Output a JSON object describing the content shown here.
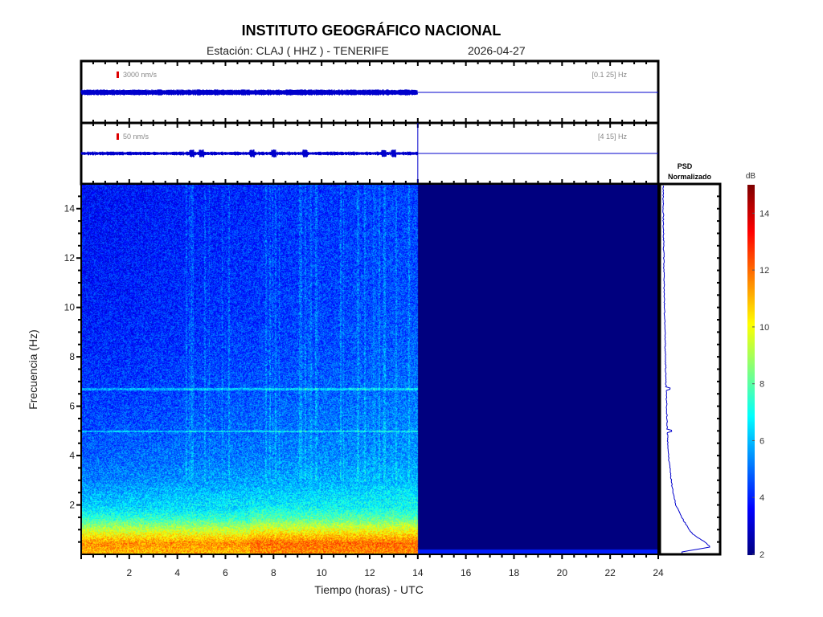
{
  "header": {
    "title": "INSTITUTO GEOGRÁFICO NACIONAL",
    "station_label": "Estación:  CLAJ ( HHZ ) - TENERIFE",
    "date": "2026-04-27"
  },
  "colors": {
    "trace": "#0000cc",
    "scale_bar": "#dd0000",
    "empty": "#00007f"
  },
  "chart_data": [
    {
      "type": "line",
      "name": "trace-broadband",
      "scale_label": "3000 nm/s",
      "band_label": "[0.1 25] Hz",
      "x_range": [
        0,
        24
      ],
      "data_end_hour": 14,
      "relative_amplitude": 0.08
    },
    {
      "type": "line",
      "name": "trace-filtered",
      "scale_label": "50 nm/s",
      "band_label": "[4 15] Hz",
      "x_range": [
        0,
        24
      ],
      "data_end_hour": 14,
      "relative_amplitude": 0.06,
      "bursts_hours": [
        4.6,
        5.0,
        7.1,
        8.0,
        9.3,
        12.6,
        13.0
      ]
    },
    {
      "type": "heatmap",
      "name": "spectrogram",
      "xlabel": "Tiempo (horas) - UTC",
      "ylabel": "Frecuencia  (Hz)",
      "xlim": [
        0,
        24
      ],
      "ylim": [
        0,
        15
      ],
      "xticks": [
        2,
        4,
        6,
        8,
        10,
        12,
        14,
        16,
        18,
        20,
        22,
        24
      ],
      "yticks": [
        2,
        4,
        6,
        8,
        10,
        12,
        14
      ],
      "data_end_hour": 14,
      "harmonic_lines_hz": [
        5.0,
        6.7
      ],
      "level_profile_db": {
        "freq_hz": [
          0.1,
          0.5,
          1,
          1.5,
          2,
          3,
          4,
          6,
          8,
          10,
          15
        ],
        "db": [
          11,
          11.5,
          9.5,
          7.5,
          6.3,
          5.3,
          4.8,
          4.4,
          4.1,
          3.9,
          3.7
        ]
      }
    },
    {
      "type": "line",
      "name": "psd",
      "title": "PSD\nNormalizado",
      "title_line1": "PSD",
      "title_line2": "Normalizado",
      "freq_hz": [
        0.1,
        0.3,
        0.5,
        0.8,
        1,
        1.5,
        2,
        2.5,
        3,
        4,
        5,
        6,
        6.7,
        8,
        10,
        12,
        14,
        15
      ],
      "value_norm": [
        0.35,
        0.85,
        0.75,
        0.55,
        0.48,
        0.35,
        0.25,
        0.2,
        0.17,
        0.12,
        0.1,
        0.09,
        0.08,
        0.07,
        0.05,
        0.04,
        0.03,
        0.03
      ],
      "spikes": [
        {
          "freq_hz": 5.0,
          "value_norm": 0.18
        },
        {
          "freq_hz": 6.7,
          "value_norm": 0.15
        }
      ]
    },
    {
      "type": "colorbar",
      "name": "colorbar",
      "label": "dB",
      "range": [
        2,
        15
      ],
      "ticks": [
        2,
        4,
        6,
        8,
        10,
        12,
        14
      ]
    }
  ]
}
